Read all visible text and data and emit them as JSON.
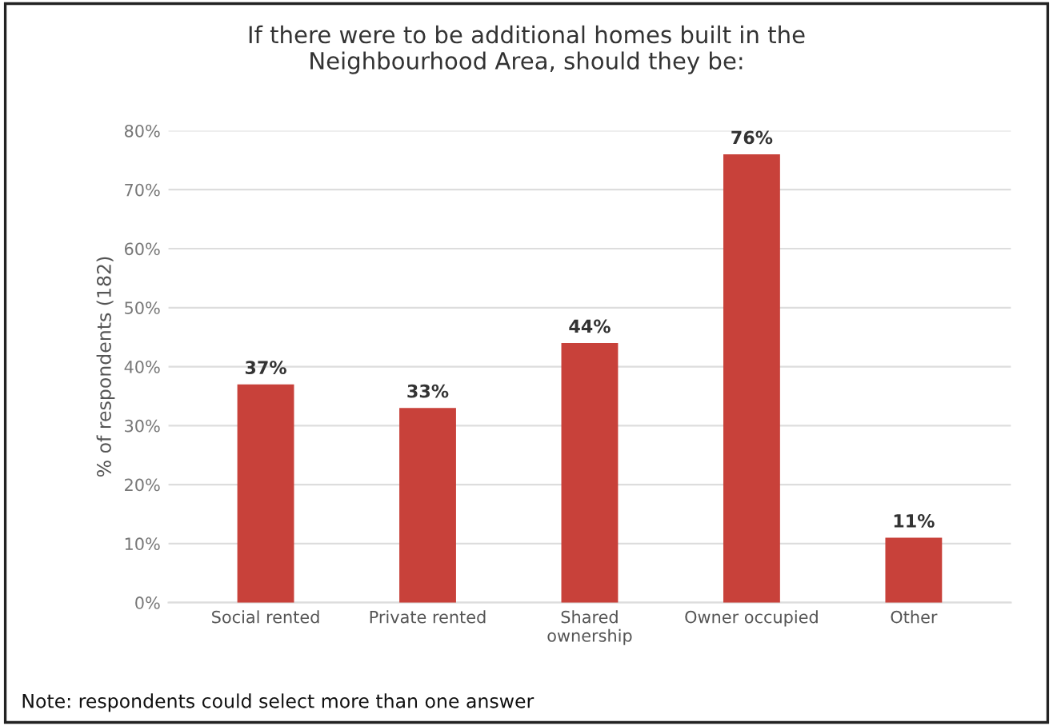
{
  "chart_data": {
    "type": "bar",
    "title": "If there were to be additional homes built in the\nNeighbourhood Area, should they be:",
    "ylabel": "% of respondents (182)",
    "categories": [
      "Social rented",
      "Private rented",
      "Shared\nownership",
      "Owner occupied",
      "Other"
    ],
    "values": [
      37,
      33,
      44,
      76,
      11
    ],
    "color": "#c8413a",
    "value_labels": [
      "37%",
      "33%",
      "44%",
      "76%",
      "11%"
    ],
    "ylim": [
      0,
      80
    ],
    "yticks": [
      {
        "value": 0,
        "label": "0%"
      },
      {
        "value": 10,
        "label": "10%"
      },
      {
        "value": 20,
        "label": "20%"
      },
      {
        "value": 30,
        "label": "30%"
      },
      {
        "value": 40,
        "label": "40%"
      },
      {
        "value": 50,
        "label": "50%"
      },
      {
        "value": 60,
        "label": "60%"
      },
      {
        "value": 70,
        "label": "70%"
      },
      {
        "value": 80,
        "label": "80%"
      }
    ],
    "grid": "y",
    "annotations": [
      "Note: respondents could select more than one answer"
    ]
  }
}
